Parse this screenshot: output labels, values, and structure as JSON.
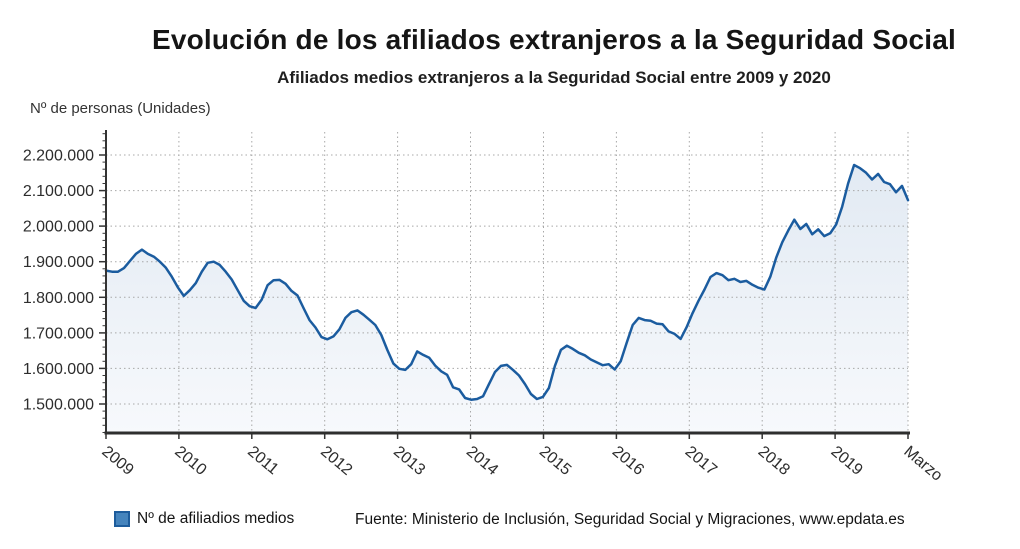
{
  "header": {
    "title": "Evolución de los afiliados extranjeros a la Seguridad Social",
    "subtitle": "Afiliados medios extranjeros a la Seguridad Social entre 2009 y 2020"
  },
  "axis_unit_label": "Nº de personas (Unidades)",
  "legend": {
    "label": "Nº de afiliadios medios",
    "swatch_fill": "#4584bd",
    "swatch_border": "#1d5c9c"
  },
  "source": "Fuente: Ministerio de Inclusión, Seguridad Social y Migraciones, www.epdata.es",
  "chart_data": {
    "type": "area",
    "title": "Evolución de los afiliados extranjeros a la Seguridad Social",
    "subtitle": "Afiliados medios extranjeros a la Seguridad Social entre 2009 y 2020",
    "ylabel": "Nº de personas (Unidades)",
    "grid": "dotted",
    "legend_position": "bottom-left",
    "x_tick_labels": [
      "2009",
      "2010",
      "2011",
      "2012",
      "2013",
      "2014",
      "2015",
      "2016",
      "2017",
      "2018",
      "2019",
      "Marzo"
    ],
    "y_ticks": [
      {
        "label": "2.200.000",
        "value": 2200000
      },
      {
        "label": "2.100.000",
        "value": 2100000
      },
      {
        "label": "2.000.000",
        "value": 2000000
      },
      {
        "label": "1.900.000",
        "value": 1900000
      },
      {
        "label": "1.800.000",
        "value": 1800000
      },
      {
        "label": "1.700.000",
        "value": 1700000
      },
      {
        "label": "1.600.000",
        "value": 1600000
      },
      {
        "label": "1.500.000",
        "value": 1500000
      }
    ],
    "ylim": [
      1418000,
      2265000
    ],
    "line_color": "#1b5c9f",
    "series": [
      {
        "name": "Nº de afiliadios medios",
        "color": "#1b5c9f",
        "frequency": "monthly",
        "values": [
          1875000,
          1872000,
          1872000,
          1882000,
          1902000,
          1922000,
          1934000,
          1922000,
          1914000,
          1900000,
          1883000,
          1858000,
          1828000,
          1804000,
          1820000,
          1840000,
          1872000,
          1897000,
          1900000,
          1891000,
          1872000,
          1850000,
          1820000,
          1790000,
          1775000,
          1770000,
          1793000,
          1834000,
          1848000,
          1849000,
          1838000,
          1818000,
          1805000,
          1770000,
          1736000,
          1715000,
          1688000,
          1682000,
          1690000,
          1710000,
          1742000,
          1758000,
          1763000,
          1751000,
          1737000,
          1722000,
          1694000,
          1652000,
          1614000,
          1599000,
          1596000,
          1612000,
          1648000,
          1638000,
          1630000,
          1608000,
          1592000,
          1582000,
          1547000,
          1541000,
          1517000,
          1512000,
          1514000,
          1522000,
          1556000,
          1590000,
          1607000,
          1610000,
          1596000,
          1580000,
          1556000,
          1528000,
          1514000,
          1520000,
          1545000,
          1607000,
          1652000,
          1664000,
          1655000,
          1644000,
          1637000,
          1625000,
          1617000,
          1609000,
          1612000,
          1597000,
          1620000,
          1672000,
          1722000,
          1742000,
          1736000,
          1734000,
          1726000,
          1724000,
          1704000,
          1697000,
          1683000,
          1716000,
          1755000,
          1790000,
          1822000,
          1857000,
          1868000,
          1862000,
          1848000,
          1852000,
          1843000,
          1846000,
          1835000,
          1827000,
          1822000,
          1858000,
          1912000,
          1955000,
          1988000,
          2018000,
          1992000,
          2006000,
          1977000,
          1991000,
          1972000,
          1980000,
          2005000,
          2055000,
          2120000,
          2172000,
          2163000,
          2150000,
          2131000,
          2147000,
          2124000,
          2118000,
          2095000,
          2113000,
          2073000
        ]
      }
    ]
  }
}
